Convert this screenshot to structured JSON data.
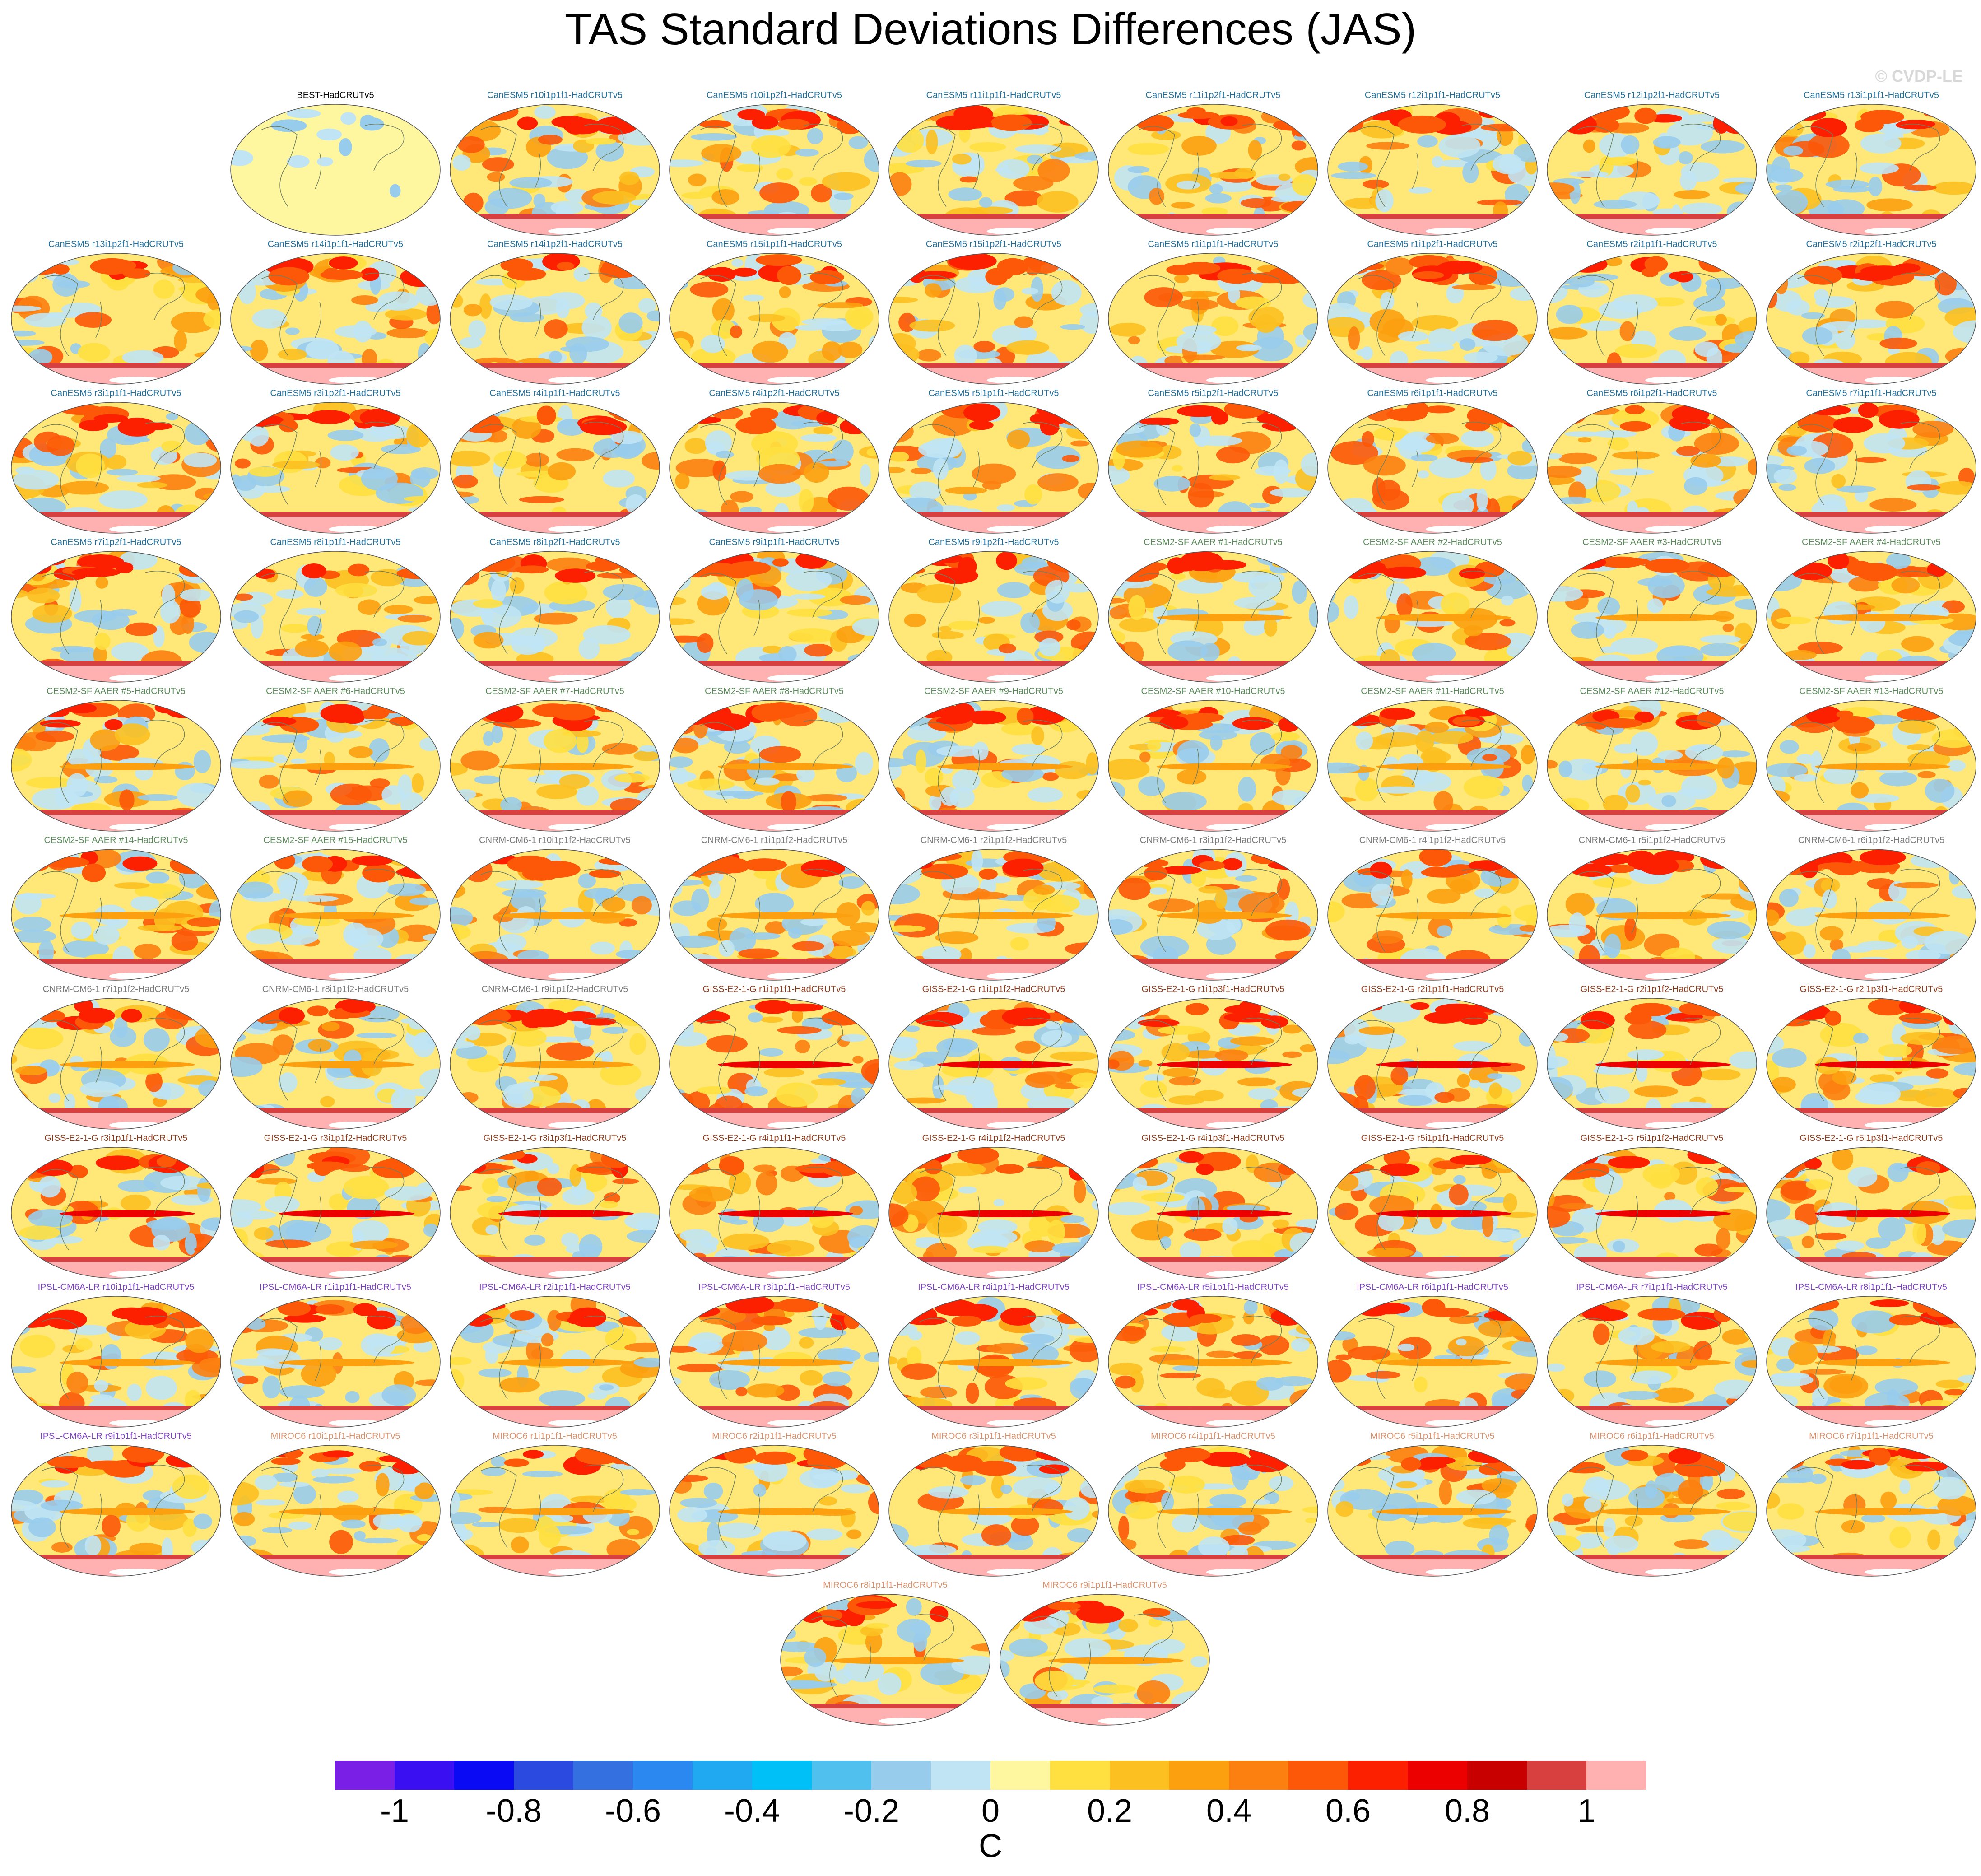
{
  "title": "TAS Standard Deviations Differences (JAS)",
  "watermark": "© CVDP-LE",
  "chart_data": {
    "type": "heatmap",
    "title": "TAS Standard Deviations Differences (JAS)",
    "projection": "global elliptical map panels",
    "panels": [
      {
        "label": "BEST-HadCRUTv5",
        "color": "#000000"
      },
      {
        "label": "CanESM5 r10i1p1f1-HadCRUTv5",
        "color": "#1f6e9c"
      },
      {
        "label": "CanESM5 r10i1p2f1-HadCRUTv5",
        "color": "#1f6e9c"
      },
      {
        "label": "CanESM5 r11i1p1f1-HadCRUTv5",
        "color": "#1f6e9c"
      },
      {
        "label": "CanESM5 r11i1p2f1-HadCRUTv5",
        "color": "#1f6e9c"
      },
      {
        "label": "CanESM5 r12i1p1f1-HadCRUTv5",
        "color": "#1f6e9c"
      },
      {
        "label": "CanESM5 r12i1p2f1-HadCRUTv5",
        "color": "#1f6e9c"
      },
      {
        "label": "CanESM5 r13i1p1f1-HadCRUTv5",
        "color": "#1f6e9c"
      },
      {
        "label": "CanESM5 r13i1p2f1-HadCRUTv5",
        "color": "#1f6e9c"
      },
      {
        "label": "CanESM5 r14i1p1f1-HadCRUTv5",
        "color": "#1f6e9c"
      },
      {
        "label": "CanESM5 r14i1p2f1-HadCRUTv5",
        "color": "#1f6e9c"
      },
      {
        "label": "CanESM5 r15i1p1f1-HadCRUTv5",
        "color": "#1f6e9c"
      },
      {
        "label": "CanESM5 r15i1p2f1-HadCRUTv5",
        "color": "#1f6e9c"
      },
      {
        "label": "CanESM5 r1i1p1f1-HadCRUTv5",
        "color": "#1f6e9c"
      },
      {
        "label": "CanESM5 r1i1p2f1-HadCRUTv5",
        "color": "#1f6e9c"
      },
      {
        "label": "CanESM5 r2i1p1f1-HadCRUTv5",
        "color": "#1f6e9c"
      },
      {
        "label": "CanESM5 r2i1p2f1-HadCRUTv5",
        "color": "#1f6e9c"
      },
      {
        "label": "CanESM5 r3i1p1f1-HadCRUTv5",
        "color": "#1f6e9c"
      },
      {
        "label": "CanESM5 r3i1p2f1-HadCRUTv5",
        "color": "#1f6e9c"
      },
      {
        "label": "CanESM5 r4i1p1f1-HadCRUTv5",
        "color": "#1f6e9c"
      },
      {
        "label": "CanESM5 r4i1p2f1-HadCRUTv5",
        "color": "#1f6e9c"
      },
      {
        "label": "CanESM5 r5i1p1f1-HadCRUTv5",
        "color": "#1f6e9c"
      },
      {
        "label": "CanESM5 r5i1p2f1-HadCRUTv5",
        "color": "#1f6e9c"
      },
      {
        "label": "CanESM5 r6i1p1f1-HadCRUTv5",
        "color": "#1f6e9c"
      },
      {
        "label": "CanESM5 r6i1p2f1-HadCRUTv5",
        "color": "#1f6e9c"
      },
      {
        "label": "CanESM5 r7i1p1f1-HadCRUTv5",
        "color": "#1f6e9c"
      },
      {
        "label": "CanESM5 r7i1p2f1-HadCRUTv5",
        "color": "#1f6e9c"
      },
      {
        "label": "CanESM5 r8i1p1f1-HadCRUTv5",
        "color": "#1f6e9c"
      },
      {
        "label": "CanESM5 r8i1p2f1-HadCRUTv5",
        "color": "#1f6e9c"
      },
      {
        "label": "CanESM5 r9i1p1f1-HadCRUTv5",
        "color": "#1f6e9c"
      },
      {
        "label": "CanESM5 r9i1p2f1-HadCRUTv5",
        "color": "#1f6e9c"
      },
      {
        "label": "CESM2-SF AAER #1-HadCRUTv5",
        "color": "#5a8a5a"
      },
      {
        "label": "CESM2-SF AAER #2-HadCRUTv5",
        "color": "#5a8a5a"
      },
      {
        "label": "CESM2-SF AAER #3-HadCRUTv5",
        "color": "#5a8a5a"
      },
      {
        "label": "CESM2-SF AAER #4-HadCRUTv5",
        "color": "#5a8a5a"
      },
      {
        "label": "CESM2-SF AAER #5-HadCRUTv5",
        "color": "#5a8a5a"
      },
      {
        "label": "CESM2-SF AAER #6-HadCRUTv5",
        "color": "#5a8a5a"
      },
      {
        "label": "CESM2-SF AAER #7-HadCRUTv5",
        "color": "#5a8a5a"
      },
      {
        "label": "CESM2-SF AAER #8-HadCRUTv5",
        "color": "#5a8a5a"
      },
      {
        "label": "CESM2-SF AAER #9-HadCRUTv5",
        "color": "#5a8a5a"
      },
      {
        "label": "CESM2-SF AAER #10-HadCRUTv5",
        "color": "#5a8a5a"
      },
      {
        "label": "CESM2-SF AAER #11-HadCRUTv5",
        "color": "#5a8a5a"
      },
      {
        "label": "CESM2-SF AAER #12-HadCRUTv5",
        "color": "#5a8a5a"
      },
      {
        "label": "CESM2-SF AAER #13-HadCRUTv5",
        "color": "#5a8a5a"
      },
      {
        "label": "CESM2-SF AAER #14-HadCRUTv5",
        "color": "#5a8a5a"
      },
      {
        "label": "CESM2-SF AAER #15-HadCRUTv5",
        "color": "#5a8a5a"
      },
      {
        "label": "CNRM-CM6-1 r10i1p1f2-HadCRUTv5",
        "color": "#7a7a7a"
      },
      {
        "label": "CNRM-CM6-1 r1i1p1f2-HadCRUTv5",
        "color": "#7a7a7a"
      },
      {
        "label": "CNRM-CM6-1 r2i1p1f2-HadCRUTv5",
        "color": "#7a7a7a"
      },
      {
        "label": "CNRM-CM6-1 r3i1p1f2-HadCRUTv5",
        "color": "#7a7a7a"
      },
      {
        "label": "CNRM-CM6-1 r4i1p1f2-HadCRUTv5",
        "color": "#7a7a7a"
      },
      {
        "label": "CNRM-CM6-1 r5i1p1f2-HadCRUTv5",
        "color": "#7a7a7a"
      },
      {
        "label": "CNRM-CM6-1 r6i1p1f2-HadCRUTv5",
        "color": "#7a7a7a"
      },
      {
        "label": "CNRM-CM6-1 r7i1p1f2-HadCRUTv5",
        "color": "#7a7a7a"
      },
      {
        "label": "CNRM-CM6-1 r8i1p1f2-HadCRUTv5",
        "color": "#7a7a7a"
      },
      {
        "label": "CNRM-CM6-1 r9i1p1f2-HadCRUTv5",
        "color": "#7a7a7a"
      },
      {
        "label": "GISS-E2-1-G r1i1p1f1-HadCRUTv5",
        "color": "#8b3a1a"
      },
      {
        "label": "GISS-E2-1-G r1i1p1f2-HadCRUTv5",
        "color": "#8b3a1a"
      },
      {
        "label": "GISS-E2-1-G r1i1p3f1-HadCRUTv5",
        "color": "#8b3a1a"
      },
      {
        "label": "GISS-E2-1-G r2i1p1f1-HadCRUTv5",
        "color": "#8b3a1a"
      },
      {
        "label": "GISS-E2-1-G r2i1p1f2-HadCRUTv5",
        "color": "#8b3a1a"
      },
      {
        "label": "GISS-E2-1-G r2i1p3f1-HadCRUTv5",
        "color": "#8b3a1a"
      },
      {
        "label": "GISS-E2-1-G r3i1p1f1-HadCRUTv5",
        "color": "#8b3a1a"
      },
      {
        "label": "GISS-E2-1-G r3i1p1f2-HadCRUTv5",
        "color": "#8b3a1a"
      },
      {
        "label": "GISS-E2-1-G r3i1p3f1-HadCRUTv5",
        "color": "#8b3a1a"
      },
      {
        "label": "GISS-E2-1-G r4i1p1f1-HadCRUTv5",
        "color": "#8b3a1a"
      },
      {
        "label": "GISS-E2-1-G r4i1p1f2-HadCRUTv5",
        "color": "#8b3a1a"
      },
      {
        "label": "GISS-E2-1-G r4i1p3f1-HadCRUTv5",
        "color": "#8b3a1a"
      },
      {
        "label": "GISS-E2-1-G r5i1p1f1-HadCRUTv5",
        "color": "#8b3a1a"
      },
      {
        "label": "GISS-E2-1-G r5i1p1f2-HadCRUTv5",
        "color": "#8b3a1a"
      },
      {
        "label": "GISS-E2-1-G r5i1p3f1-HadCRUTv5",
        "color": "#8b3a1a"
      },
      {
        "label": "IPSL-CM6A-LR r10i1p1f1-HadCRUTv5",
        "color": "#7b3fc0"
      },
      {
        "label": "IPSL-CM6A-LR r1i1p1f1-HadCRUTv5",
        "color": "#7b3fc0"
      },
      {
        "label": "IPSL-CM6A-LR r2i1p1f1-HadCRUTv5",
        "color": "#7b3fc0"
      },
      {
        "label": "IPSL-CM6A-LR r3i1p1f1-HadCRUTv5",
        "color": "#7b3fc0"
      },
      {
        "label": "IPSL-CM6A-LR r4i1p1f1-HadCRUTv5",
        "color": "#7b3fc0"
      },
      {
        "label": "IPSL-CM6A-LR r5i1p1f1-HadCRUTv5",
        "color": "#7b3fc0"
      },
      {
        "label": "IPSL-CM6A-LR r6i1p1f1-HadCRUTv5",
        "color": "#7b3fc0"
      },
      {
        "label": "IPSL-CM6A-LR r7i1p1f1-HadCRUTv5",
        "color": "#7b3fc0"
      },
      {
        "label": "IPSL-CM6A-LR r8i1p1f1-HadCRUTv5",
        "color": "#7b3fc0"
      },
      {
        "label": "IPSL-CM6A-LR r9i1p1f1-HadCRUTv5",
        "color": "#7b3fc0"
      },
      {
        "label": "MIROC6 r10i1p1f1-HadCRUTv5",
        "color": "#d9906a"
      },
      {
        "label": "MIROC6 r1i1p1f1-HadCRUTv5",
        "color": "#d9906a"
      },
      {
        "label": "MIROC6 r2i1p1f1-HadCRUTv5",
        "color": "#d9906a"
      },
      {
        "label": "MIROC6 r3i1p1f1-HadCRUTv5",
        "color": "#d9906a"
      },
      {
        "label": "MIROC6 r4i1p1f1-HadCRUTv5",
        "color": "#d9906a"
      },
      {
        "label": "MIROC6 r5i1p1f1-HadCRUTv5",
        "color": "#d9906a"
      },
      {
        "label": "MIROC6 r6i1p1f1-HadCRUTv5",
        "color": "#d9906a"
      },
      {
        "label": "MIROC6 r7i1p1f1-HadCRUTv5",
        "color": "#d9906a"
      },
      {
        "label": "MIROC6 r8i1p1f1-HadCRUTv5",
        "color": "#d9906a"
      },
      {
        "label": "MIROC6 r9i1p1f1-HadCRUTv5",
        "color": "#d9906a"
      }
    ],
    "colorbar": {
      "units": "C",
      "tick_labels": [
        "-1",
        "-0.8",
        "-0.6",
        "-0.4",
        "-0.2",
        "0",
        "0.2",
        "0.4",
        "0.6",
        "0.8",
        "1"
      ],
      "levels": [
        -1.1,
        -1.0,
        -0.9,
        -0.8,
        -0.7,
        -0.6,
        -0.5,
        -0.4,
        -0.3,
        -0.2,
        -0.1,
        0,
        0.1,
        0.2,
        0.3,
        0.4,
        0.5,
        0.6,
        0.7,
        0.8,
        0.9,
        1.0,
        1.1
      ],
      "colors": [
        "#7a1fe6",
        "#3a0ff2",
        "#0a0af5",
        "#2a4ae0",
        "#3470e0",
        "#2a88f0",
        "#20a8f0",
        "#00c0f8",
        "#50c0ee",
        "#98ccec",
        "#c0e4f4",
        "#fff6a0",
        "#ffe040",
        "#fcc020",
        "#fca010",
        "#fc8010",
        "#fc5808",
        "#fc2000",
        "#ec0000",
        "#c80000",
        "#d84040",
        "#ffb0b0"
      ]
    }
  }
}
